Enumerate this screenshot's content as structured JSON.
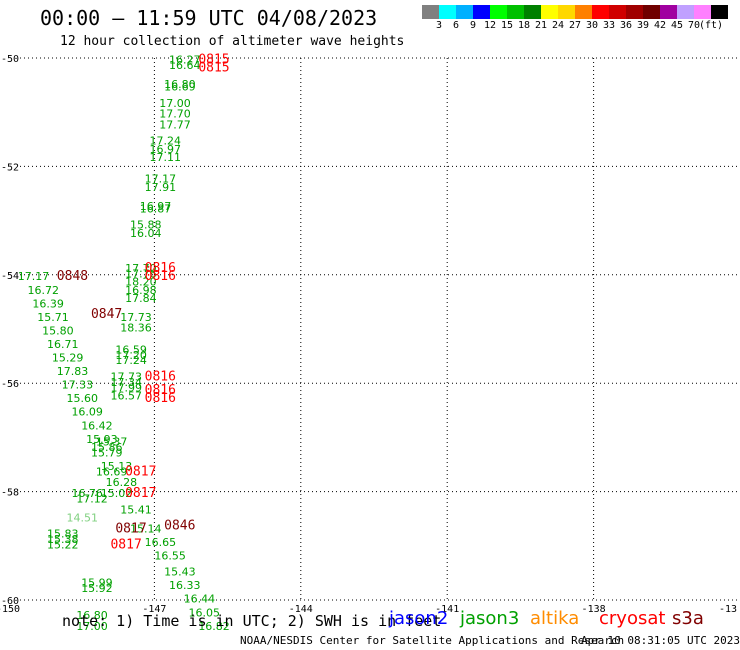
{
  "header": {
    "title": "00:00 — 11:59 UTC 04/08/2023",
    "subtitle": "12 hour collection of altimeter wave heights"
  },
  "legend": {
    "colors": [
      "#808080",
      "#00ffff",
      "#00b0ff",
      "#0000ff",
      "#00ff00",
      "#00c000",
      "#008000",
      "#ffff00",
      "#ffd800",
      "#ff8000",
      "#ff0000",
      "#d00000",
      "#a00000",
      "#700000",
      "#a000a0",
      "#c0a0ff",
      "#ff80ff",
      "#000000"
    ],
    "labels": [
      "3",
      "6",
      "9",
      "12",
      "15",
      "18",
      "21",
      "24",
      "27",
      "30",
      "33",
      "36",
      "39",
      "42",
      "45",
      "70",
      "(ft)"
    ]
  },
  "footer": {
    "note": "note: 1) Time is in UTC; 2) SWH is in feet",
    "satellites": [
      {
        "name": "jason2",
        "color": "#0000ff"
      },
      {
        "name": "jason3",
        "color": "#00a000"
      },
      {
        "name": "altika",
        "color": "#ff8c00"
      },
      {
        "name": "cryosat",
        "color": "#ff0000"
      },
      {
        "name": "s3a",
        "color": "#800000"
      }
    ],
    "credit": "NOAA/NESDIS Center for Satellite Applications and Research",
    "timestamp": "Apr 10 08:31:05 UTC 2023"
  },
  "chart_data": {
    "type": "scatter",
    "title": "00:00 — 11:59 UTC 04/08/2023",
    "subtitle": "12 hour collection of altimeter wave heights",
    "xlabel": "",
    "ylabel": "",
    "xlim": [
      -150,
      -135
    ],
    "ylim": [
      -60,
      -50
    ],
    "x_ticks": [
      "-150",
      "-147",
      "-144",
      "-141",
      "-138",
      "-13"
    ],
    "y_ticks": [
      "-50",
      "-52",
      "-54",
      "-56",
      "-58",
      "-60"
    ],
    "grid": true,
    "units": "ft",
    "wave_heights": [
      {
        "text": "16.27",
        "x": -146.7,
        "y": -50.1,
        "color": "#00a000"
      },
      {
        "text": "16.64",
        "x": -146.7,
        "y": -50.2,
        "color": "#00a000"
      },
      {
        "text": "16.80",
        "x": -146.8,
        "y": -50.55,
        "color": "#00a000"
      },
      {
        "text": "16.69",
        "x": -146.8,
        "y": -50.6,
        "color": "#00a000"
      },
      {
        "text": "17.00",
        "x": -146.9,
        "y": -50.9,
        "color": "#00a000"
      },
      {
        "text": "17.70",
        "x": -146.9,
        "y": -51.1,
        "color": "#00a000"
      },
      {
        "text": "17.77",
        "x": -146.9,
        "y": -51.3,
        "color": "#00a000"
      },
      {
        "text": "17.24",
        "x": -147.1,
        "y": -51.6,
        "color": "#00a000"
      },
      {
        "text": "16.97",
        "x": -147.1,
        "y": -51.75,
        "color": "#00a000"
      },
      {
        "text": "17.11",
        "x": -147.1,
        "y": -51.9,
        "color": "#00a000"
      },
      {
        "text": "17.17",
        "x": -147.2,
        "y": -52.3,
        "color": "#00a000"
      },
      {
        "text": "17.91",
        "x": -147.2,
        "y": -52.45,
        "color": "#00a000"
      },
      {
        "text": "16.97",
        "x": -147.3,
        "y": -52.8,
        "color": "#00a000"
      },
      {
        "text": "16.87",
        "x": -147.3,
        "y": -52.85,
        "color": "#00a000"
      },
      {
        "text": "15.88",
        "x": -147.5,
        "y": -53.15,
        "color": "#00a000"
      },
      {
        "text": "16.04",
        "x": -147.5,
        "y": -53.3,
        "color": "#00a000"
      },
      {
        "text": "17.70",
        "x": -147.6,
        "y": -53.95,
        "color": "#00a000"
      },
      {
        "text": "17.76",
        "x": -147.6,
        "y": -54.05,
        "color": "#00a000"
      },
      {
        "text": "18.20",
        "x": -147.6,
        "y": -54.2,
        "color": "#00a000"
      },
      {
        "text": "16.98",
        "x": -147.6,
        "y": -54.35,
        "color": "#00a000"
      },
      {
        "text": "17.84",
        "x": -147.6,
        "y": -54.5,
        "color": "#00a000"
      },
      {
        "text": "17.73",
        "x": -147.7,
        "y": -54.85,
        "color": "#00a000"
      },
      {
        "text": "18.36",
        "x": -147.7,
        "y": -55.05,
        "color": "#00a000"
      },
      {
        "text": "16.59",
        "x": -147.8,
        "y": -55.45,
        "color": "#00a000"
      },
      {
        "text": "17.20",
        "x": -147.8,
        "y": -55.55,
        "color": "#00a000"
      },
      {
        "text": "17.24",
        "x": -147.8,
        "y": -55.65,
        "color": "#00a000"
      },
      {
        "text": "17.73",
        "x": -147.9,
        "y": -55.95,
        "color": "#00a000"
      },
      {
        "text": "17.34",
        "x": -147.9,
        "y": -56.05,
        "color": "#00a000"
      },
      {
        "text": "17.99",
        "x": -147.9,
        "y": -56.15,
        "color": "#00a000"
      },
      {
        "text": "16.57",
        "x": -147.9,
        "y": -56.3,
        "color": "#00a000"
      },
      {
        "text": "17.17",
        "x": -149.8,
        "y": -54.1,
        "color": "#00a000"
      },
      {
        "text": "16.72",
        "x": -149.6,
        "y": -54.35,
        "color": "#00a000"
      },
      {
        "text": "16.39",
        "x": -149.5,
        "y": -54.6,
        "color": "#00a000"
      },
      {
        "text": "15.71",
        "x": -149.4,
        "y": -54.85,
        "color": "#00a000"
      },
      {
        "text": "15.80",
        "x": -149.3,
        "y": -55.1,
        "color": "#00a000"
      },
      {
        "text": "16.71",
        "x": -149.2,
        "y": -55.35,
        "color": "#00a000"
      },
      {
        "text": "15.29",
        "x": -149.1,
        "y": -55.6,
        "color": "#00a000"
      },
      {
        "text": "17.83",
        "x": -149.0,
        "y": -55.85,
        "color": "#00a000"
      },
      {
        "text": "17.33",
        "x": -148.9,
        "y": -56.1,
        "color": "#00a000"
      },
      {
        "text": "15.60",
        "x": -148.8,
        "y": -56.35,
        "color": "#00a000"
      },
      {
        "text": "16.09",
        "x": -148.7,
        "y": -56.6,
        "color": "#00a000"
      },
      {
        "text": "16.42",
        "x": -148.5,
        "y": -56.85,
        "color": "#00a000"
      },
      {
        "text": "15.93",
        "x": -148.4,
        "y": -57.1,
        "color": "#00a000"
      },
      {
        "text": "15.37",
        "x": -148.2,
        "y": -57.15,
        "color": "#00a000"
      },
      {
        "text": "15.86",
        "x": -148.3,
        "y": -57.25,
        "color": "#00a000"
      },
      {
        "text": "15.79",
        "x": -148.3,
        "y": -57.35,
        "color": "#00a000"
      },
      {
        "text": "15.13",
        "x": -148.1,
        "y": -57.6,
        "color": "#00a000"
      },
      {
        "text": "16.69",
        "x": -148.2,
        "y": -57.7,
        "color": "#00a000"
      },
      {
        "text": "16.28",
        "x": -148.0,
        "y": -57.9,
        "color": "#00a000"
      },
      {
        "text": "16.76",
        "x": -148.7,
        "y": -58.1,
        "color": "#00a000"
      },
      {
        "text": "15.02",
        "x": -148.1,
        "y": -58.1,
        "color": "#00a000"
      },
      {
        "text": "17.12",
        "x": -148.6,
        "y": -58.2,
        "color": "#00a000"
      },
      {
        "text": "15.41",
        "x": -147.7,
        "y": -58.4,
        "color": "#00a000"
      },
      {
        "text": "14.51",
        "x": -148.8,
        "y": -58.55,
        "color": "#80d080"
      },
      {
        "text": "15.14",
        "x": -147.5,
        "y": -58.75,
        "color": "#00a000"
      },
      {
        "text": "15.83",
        "x": -149.2,
        "y": -58.85,
        "color": "#00a000"
      },
      {
        "text": "15.38",
        "x": -149.2,
        "y": -58.95,
        "color": "#00a000"
      },
      {
        "text": "15.22",
        "x": -149.2,
        "y": -59.05,
        "color": "#00a000"
      },
      {
        "text": "16.65",
        "x": -147.2,
        "y": -59.0,
        "color": "#00a000"
      },
      {
        "text": "16.55",
        "x": -147.0,
        "y": -59.25,
        "color": "#00a000"
      },
      {
        "text": "15.43",
        "x": -146.8,
        "y": -59.55,
        "color": "#00a000"
      },
      {
        "text": "16.33",
        "x": -146.7,
        "y": -59.8,
        "color": "#00a000"
      },
      {
        "text": "15.99",
        "x": -148.5,
        "y": -59.75,
        "color": "#00a000"
      },
      {
        "text": "15.92",
        "x": -148.5,
        "y": -59.85,
        "color": "#00a000"
      },
      {
        "text": "16.44",
        "x": -146.4,
        "y": -60.05,
        "color": "#00a000"
      },
      {
        "text": "16.05",
        "x": -146.3,
        "y": -60.3,
        "color": "#00a000"
      },
      {
        "text": "16.80",
        "x": -148.6,
        "y": -60.35,
        "color": "#00a000"
      },
      {
        "text": "17.00",
        "x": -148.6,
        "y": -60.55,
        "color": "#00a000"
      },
      {
        "text": "16.82",
        "x": -146.1,
        "y": -60.55,
        "color": "#00a000"
      }
    ],
    "times": [
      {
        "text": "0815",
        "x": -146.1,
        "y": -50.1,
        "color": "#ff0000"
      },
      {
        "text": "0815",
        "x": -146.1,
        "y": -50.25,
        "color": "#ff0000"
      },
      {
        "text": "0816",
        "x": -147.2,
        "y": -53.95,
        "color": "#ff0000"
      },
      {
        "text": "0816",
        "x": -147.2,
        "y": -54.1,
        "color": "#ff0000"
      },
      {
        "text": "0848",
        "x": -149.0,
        "y": -54.1,
        "color": "#800000"
      },
      {
        "text": "0847",
        "x": -148.3,
        "y": -54.8,
        "color": "#800000"
      },
      {
        "text": "0816",
        "x": -147.2,
        "y": -55.95,
        "color": "#ff0000"
      },
      {
        "text": "0816",
        "x": -147.2,
        "y": -56.2,
        "color": "#ff0000"
      },
      {
        "text": "0816",
        "x": -147.2,
        "y": -56.35,
        "color": "#ff0000"
      },
      {
        "text": "0817",
        "x": -147.6,
        "y": -57.7,
        "color": "#ff0000"
      },
      {
        "text": "0817",
        "x": -147.6,
        "y": -58.1,
        "color": "#ff0000"
      },
      {
        "text": "0846",
        "x": -146.8,
        "y": -58.7,
        "color": "#800000"
      },
      {
        "text": "0817",
        "x": -147.8,
        "y": -58.75,
        "color": "#800000"
      },
      {
        "text": "0817",
        "x": -147.9,
        "y": -59.05,
        "color": "#ff0000"
      }
    ]
  }
}
